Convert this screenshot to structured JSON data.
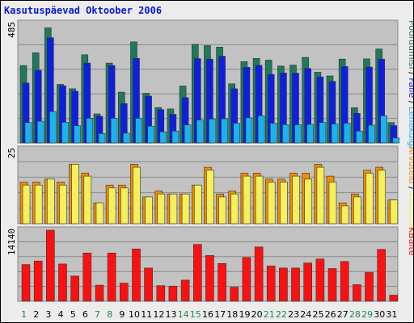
{
  "chart_data": {
    "type": "bar",
    "title": "Kasutuspäevad Oktoober 2006",
    "categories": [
      "1",
      "2",
      "3",
      "4",
      "5",
      "6",
      "7",
      "8",
      "9",
      "10",
      "11",
      "12",
      "13",
      "14",
      "15",
      "16",
      "17",
      "18",
      "19",
      "20",
      "21",
      "22",
      "23",
      "24",
      "25",
      "26",
      "27",
      "28",
      "29",
      "30",
      "31"
    ],
    "weekend_days": [
      "1",
      "7",
      "8",
      "14",
      "15",
      "21",
      "22",
      "28",
      "29"
    ],
    "panels": [
      {
        "key": "top",
        "ymax_label": "485",
        "ymax": 485,
        "side_label": [
          "Pöördumisi",
          "Faile",
          "Lehekülgi"
        ],
        "series": [
          {
            "name": "Pöördumisi",
            "color": "#1e7a5a",
            "values": [
              314,
              366,
              467,
              238,
              220,
              358,
              118,
              324,
              206,
              410,
              202,
              144,
              138,
              231,
              400,
              395,
              389,
              240,
              330,
              343,
              336,
              312,
              316,
              347,
              287,
              272,
              340,
              143,
              341,
              381,
              83
            ]
          },
          {
            "name": "Faile",
            "color": "#0f1fe0",
            "values": [
              243,
              295,
              427,
              232,
              210,
              324,
              108,
              314,
              160,
              343,
              190,
              135,
              116,
              184,
              342,
              340,
              352,
              220,
              307,
              315,
              278,
              284,
              283,
              302,
              268,
              250,
              310,
              120,
              308,
              340,
              70
            ]
          },
          {
            "name": "Lehekülgi",
            "color": "#19b3ee",
            "values": [
              83,
              88,
              127,
              84,
              70,
              100,
              38,
              100,
              40,
              100,
              68,
              45,
              48,
              73,
              93,
              97,
              98,
              80,
              102,
              110,
              80,
              74,
              74,
              75,
              83,
              77,
              80,
              48,
              72,
              110,
              20
            ]
          }
        ]
      },
      {
        "key": "mid",
        "ymax_label": "25",
        "ymax": 25,
        "side_label": [
          "Arvuteid",
          "Külastusi"
        ],
        "series": [
          {
            "name": "Arvuteid",
            "color": "#f28c00",
            "values": [
              14,
              14,
              15,
              14,
              20,
              17,
              7,
              13,
              13,
              20,
              9,
              11,
              10,
              10,
              13,
              19,
              10,
              11,
              17,
              17,
              15,
              15,
              17,
              17,
              20,
              16,
              7,
              10,
              18,
              19,
              8
            ]
          },
          {
            "name": "Külastusi",
            "color": "#f4ef5a",
            "values": [
              13,
              13,
              15,
              13,
              20,
              16,
              7,
              12,
              12,
              19,
              9,
              10,
              10,
              10,
              13,
              18,
              9,
              10,
              16,
              16,
              14,
              14,
              16,
              15,
              19,
              14,
              6,
              9,
              17,
              18,
              8
            ]
          }
        ]
      },
      {
        "key": "bot",
        "ymax_label": "14140",
        "ymax": 14140,
        "side_label": [
          "KBaite"
        ],
        "series": [
          {
            "name": "KBaite",
            "color": "#ff1010",
            "values": [
              7300,
              8000,
              14140,
              7400,
              5000,
              9600,
              3200,
              9600,
              3600,
              10400,
              6600,
              3100,
              3000,
              4200,
              11300,
              9100,
              7500,
              2800,
              8700,
              10800,
              7000,
              6600,
              6600,
              7600,
              8400,
              6500,
              7900,
              3300,
              5700,
              10300,
              1200
            ]
          }
        ]
      }
    ]
  }
}
